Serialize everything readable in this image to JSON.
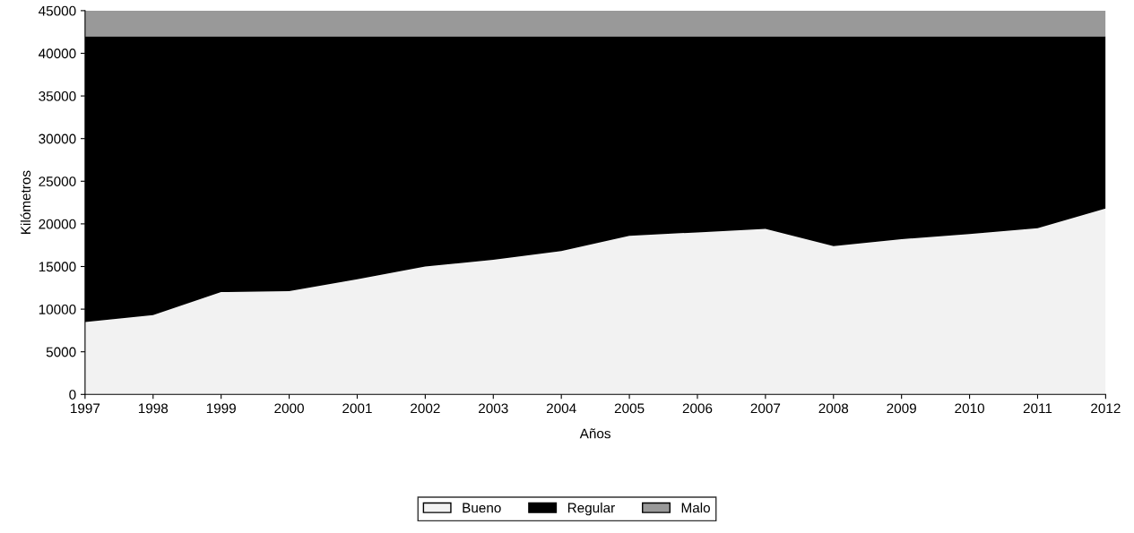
{
  "chart_data": {
    "type": "area",
    "stacked": true,
    "xlabel": "Años",
    "ylabel": "Kilómetros",
    "x": [
      1997,
      1998,
      1999,
      2000,
      2001,
      2002,
      2003,
      2004,
      2005,
      2006,
      2007,
      2008,
      2009,
      2010,
      2011,
      2012
    ],
    "series": [
      {
        "name": "Bueno",
        "color": "#f2f2f2",
        "values": [
          8500,
          9300,
          12000,
          12100,
          13500,
          15000,
          15800,
          16800,
          18600,
          19000,
          19400,
          17400,
          18200,
          18800,
          19500,
          21800
        ]
      },
      {
        "name": "Regular",
        "color": "#000000",
        "values": [
          33500,
          32700,
          30000,
          29900,
          28500,
          27000,
          26200,
          25200,
          23400,
          23000,
          22600,
          24600,
          23800,
          23200,
          22500,
          20200
        ]
      },
      {
        "name": "Malo",
        "color": "#999999",
        "values": [
          3000,
          3000,
          3000,
          3000,
          3000,
          3000,
          3000,
          3000,
          3000,
          3000,
          3000,
          3000,
          3000,
          3000,
          3000,
          3000
        ]
      }
    ],
    "xlim": [
      1997,
      2012
    ],
    "xticks": [
      1997,
      1998,
      1999,
      2000,
      2001,
      2002,
      2003,
      2004,
      2005,
      2006,
      2007,
      2008,
      2009,
      2010,
      2011,
      2012
    ],
    "ylim": [
      0,
      45000
    ],
    "yticks": [
      0,
      5000,
      10000,
      15000,
      20000,
      25000,
      30000,
      35000,
      40000,
      45000
    ],
    "grid": false,
    "legend": "bottom"
  }
}
